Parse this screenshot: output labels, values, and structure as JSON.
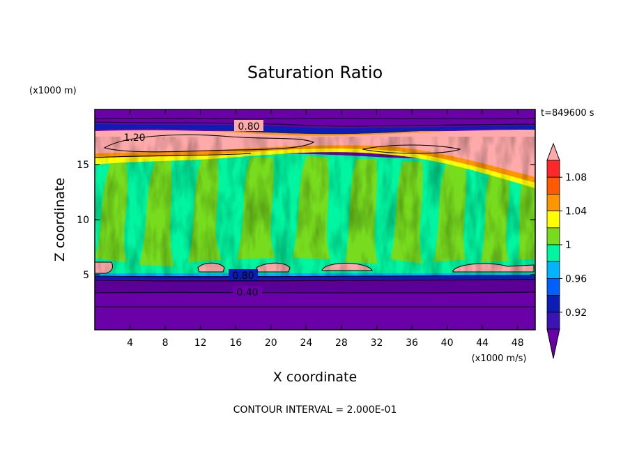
{
  "chart_data": {
    "type": "heatmap",
    "title": "Saturation Ratio",
    "xlabel": "X coordinate",
    "ylabel": "Z coordinate",
    "x_units": "(x1000 m/s)",
    "y_units": "(x1000 m)",
    "time_label": "t=849600 s",
    "footer": "CONTOUR INTERVAL = 2.000E-01",
    "xlim": [
      0,
      50
    ],
    "ylim": [
      0,
      20
    ],
    "x_ticks": [
      4,
      8,
      12,
      16,
      20,
      24,
      28,
      32,
      36,
      40,
      44,
      48
    ],
    "y_ticks": [
      5,
      10,
      15
    ],
    "colorbar": {
      "labels": [
        "0.92",
        "0.96",
        "1",
        "1.04",
        "1.08"
      ],
      "levels": [
        0.9,
        0.92,
        0.94,
        0.96,
        0.98,
        1.0,
        1.02,
        1.04,
        1.06,
        1.08,
        1.1
      ],
      "colors": [
        "#6a00a8",
        "#3c14b4",
        "#0a1eb4",
        "#0060ff",
        "#00b4ff",
        "#00f5a0",
        "#78dc1e",
        "#ffff00",
        "#ff9600",
        "#ff5a00",
        "#ff2828",
        "#ffaaaa"
      ]
    },
    "contour_labels": [
      "0.80",
      "1.20",
      "0.80",
      "0.40"
    ],
    "layers": [
      {
        "z_range": [
          0,
          4.6
        ],
        "value": "<0.90",
        "color": "#6a00a8"
      },
      {
        "z_range": [
          4.6,
          5.0
        ],
        "value": "0.92-0.98",
        "color": "#0060ff"
      },
      {
        "z_range": [
          5.0,
          15.5
        ],
        "value": "0.98-1.02",
        "color": "#00f5a0"
      },
      {
        "z_range": [
          14.5,
          16.5
        ],
        "value": "1.02-1.10",
        "color": "#ff5a00"
      },
      {
        "z_range": [
          16.0,
          18.2
        ],
        "value": ">1.10",
        "color": "#ffaaaa"
      },
      {
        "z_range": [
          18.2,
          20
        ],
        "value": "<0.90",
        "color": "#6a00a8"
      }
    ]
  }
}
